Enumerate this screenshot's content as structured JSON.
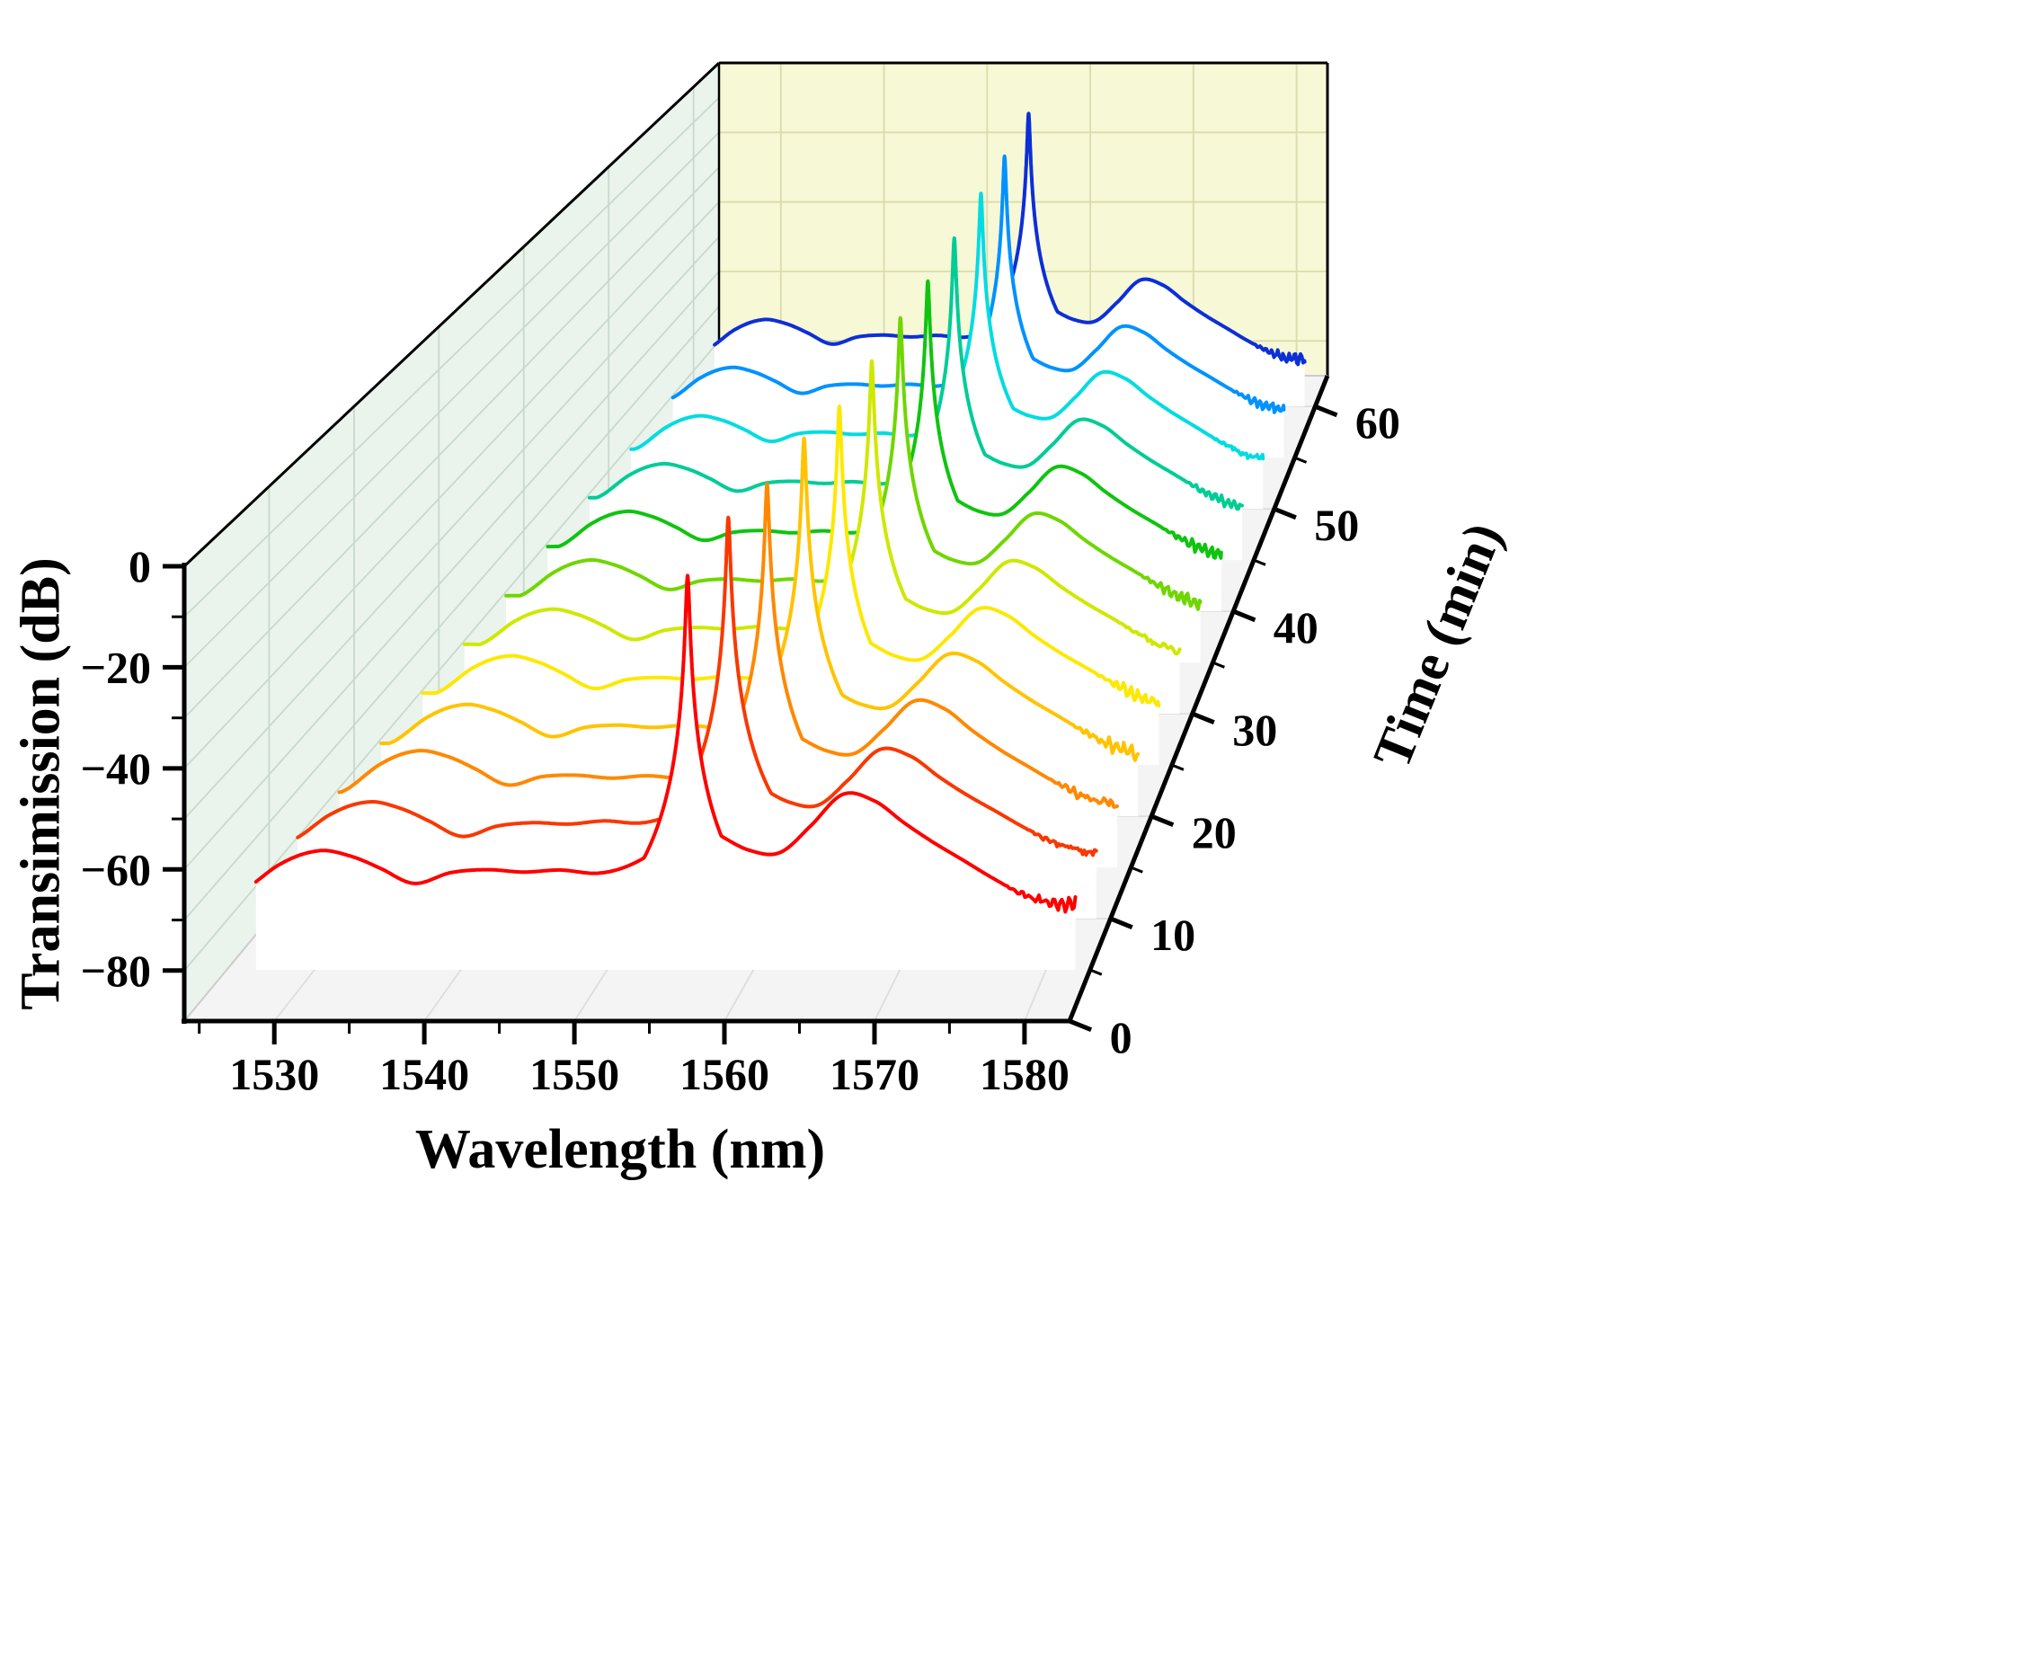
{
  "figure": {
    "background": "#ffffff",
    "frame_color": "#000000"
  },
  "walls": {
    "left": "#eaf4ec",
    "back": "#f7f8d6",
    "floor": "#f4f4f4",
    "left_grid": "#c8d9cd",
    "back_grid": "#dadcab",
    "floor_grid": "#dddddd"
  },
  "chart_data": {
    "type": "line",
    "variant": "3d-waterfall",
    "title": "",
    "xlabel": "Wavelength (nm)",
    "ylabel": "Time (min)",
    "zlabel": "Transimission (dB)",
    "x_range": [
      1524,
      1583
    ],
    "x_ticks": [
      1530,
      1540,
      1550,
      1560,
      1570,
      1580
    ],
    "x_tick_labels": [
      "1530",
      "1540",
      "1550",
      "1560",
      "1570",
      "1580"
    ],
    "x_minor_step": 5,
    "z_range": [
      -90,
      0
    ],
    "z_ticks": [
      0,
      -20,
      -40,
      -60,
      -80
    ],
    "z_tick_labels": [
      "0",
      "−20",
      "−40",
      "−60",
      "−80"
    ],
    "z_minor_step": 10,
    "t_range": [
      0,
      63
    ],
    "t_ticks": [
      0,
      10,
      20,
      30,
      40,
      50,
      60
    ],
    "t_tick_labels": [
      "0",
      "10",
      "20",
      "30",
      "40",
      "50",
      "60"
    ],
    "t_minor_step": 5,
    "data_range": [
      1526,
      1582
    ],
    "profile_peak_ref": 1556.7,
    "peak_half_width_nm": 0.11,
    "noise_tail_start_nm": 1577,
    "noise_amp_db": 1.4,
    "base_profile": [
      [
        1526,
        -74
      ],
      [
        1529,
        -68
      ],
      [
        1531.5,
        -65.5
      ],
      [
        1533.5,
        -66.5
      ],
      [
        1535.5,
        -69
      ],
      [
        1538,
        -72.5
      ],
      [
        1540.5,
        -70.5
      ],
      [
        1543,
        -70
      ],
      [
        1545.5,
        -70.5
      ],
      [
        1548,
        -70
      ],
      [
        1550.5,
        -70.5
      ],
      [
        1552.5,
        -69
      ],
      [
        1554.5,
        -65.5
      ],
      [
        1556,
        -59.5
      ],
      [
        1556.7,
        -55
      ],
      [
        1557.4,
        -58.5
      ],
      [
        1559,
        -62.5
      ],
      [
        1561,
        -65.5
      ],
      [
        1563,
        -66
      ],
      [
        1565,
        -61
      ],
      [
        1567.3,
        -54.5
      ],
      [
        1569.5,
        -56
      ],
      [
        1571.5,
        -60.5
      ],
      [
        1573.5,
        -64.5
      ],
      [
        1575.5,
        -68
      ],
      [
        1577.5,
        -71.5
      ],
      [
        1579.5,
        -74.5
      ],
      [
        1581,
        -76
      ],
      [
        1582,
        -76.5
      ]
    ],
    "series": [
      {
        "time": 5,
        "color": "#ff0000",
        "peak_nm": 1555.5,
        "peak_db": -10
      },
      {
        "time": 10,
        "color": "#f93800",
        "peak_nm": 1556.2,
        "peak_db": -6.5
      },
      {
        "time": 15,
        "color": "#ff8800",
        "peak_nm": 1556.8,
        "peak_db": -8
      },
      {
        "time": 20,
        "color": "#ffc300",
        "peak_nm": 1557.3,
        "peak_db": -7
      },
      {
        "time": 25,
        "color": "#fde800",
        "peak_nm": 1557.7,
        "peak_db": -9
      },
      {
        "time": 30,
        "color": "#cfe800",
        "peak_nm": 1557.9,
        "peak_db": -8
      },
      {
        "time": 35,
        "color": "#6fd600",
        "peak_nm": 1557.8,
        "peak_db": -7.5
      },
      {
        "time": 40,
        "color": "#0fc40f",
        "peak_nm": 1557.6,
        "peak_db": -8.5
      },
      {
        "time": 45,
        "color": "#00cc96",
        "peak_nm": 1557.3,
        "peak_db": -8
      },
      {
        "time": 50,
        "color": "#00dce0",
        "peak_nm": 1557.0,
        "peak_db": -7
      },
      {
        "time": 55,
        "color": "#0092ff",
        "peak_nm": 1556.4,
        "peak_db": -8
      },
      {
        "time": 60,
        "color": "#0c2fd6",
        "peak_nm": 1555.8,
        "peak_db": -7.5
      }
    ]
  }
}
